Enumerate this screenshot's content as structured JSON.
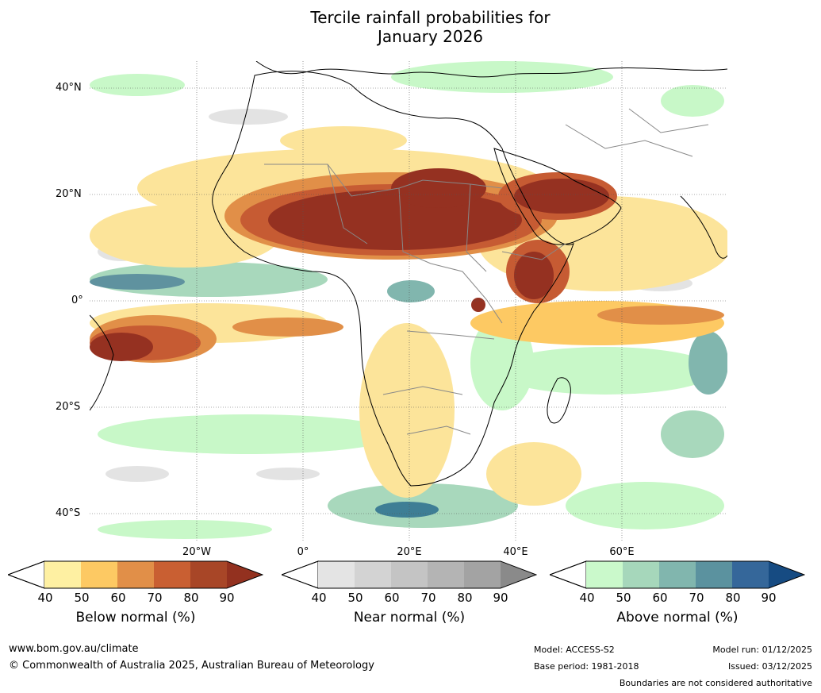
{
  "title_line1": "Tercile rainfall probabilities for",
  "title_line2": "January 2026",
  "map": {
    "lat_labels": [
      "40°N",
      "20°N",
      "0°",
      "20°S",
      "40°S"
    ],
    "lon_labels": [
      "20°W",
      "0°",
      "20°E",
      "40°E",
      "60°E"
    ],
    "regions": {
      "below_dark_sahel": "#953121",
      "below_mid": "#c65b33",
      "below_light": "#fce49a",
      "near_light": "#e3e3e3",
      "above_light": "#c8f8c8",
      "above_mid": "#7fb5a8",
      "above_dark": "#3e7e95"
    }
  },
  "colorbars": [
    {
      "label": "Below normal (%)",
      "ticks": [
        "40",
        "50",
        "60",
        "70",
        "80",
        "90"
      ],
      "colors": [
        "#fef0a2",
        "#fdc963",
        "#e18f48",
        "#c95f32",
        "#a84627",
        "#93311f"
      ]
    },
    {
      "label": "Near normal (%)",
      "ticks": [
        "40",
        "50",
        "60",
        "70",
        "80",
        "90"
      ],
      "colors": [
        "#e4e4e4",
        "#d3d3d3",
        "#c4c4c4",
        "#b4b4b4",
        "#a3a3a3",
        "#8a8a8a"
      ]
    },
    {
      "label": "Above normal (%)",
      "ticks": [
        "40",
        "50",
        "60",
        "70",
        "80",
        "90"
      ],
      "colors": [
        "#caf9cb",
        "#a6d7bb",
        "#81b6ae",
        "#5b929f",
        "#35679a",
        "#164b82"
      ]
    }
  ],
  "footer": {
    "website": "www.bom.gov.au/climate",
    "copyright": "© Commonwealth of Australia 2025, Australian Bureau of Meteorology",
    "model": "Model: ACCESS-S2",
    "base_period": "Base period: 1981-2018",
    "model_run": "Model run: 01/12/2025",
    "issued": "Issued: 03/12/2025",
    "disclaimer": "Boundaries are not considered authoritative"
  }
}
